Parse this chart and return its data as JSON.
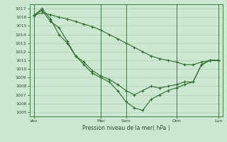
{
  "background_color": "#cde8d2",
  "grid_color": "#a8c8a8",
  "line_color": "#2d6a2d",
  "marker_color": "#2d6a2d",
  "xlabel_text": "Pression niveau de la mer( hPa )",
  "ylim": [
    1004.5,
    1017.5
  ],
  "yticks": [
    1005,
    1006,
    1007,
    1008,
    1009,
    1010,
    1011,
    1012,
    1013,
    1014,
    1015,
    1016,
    1017
  ],
  "xtick_labels": [
    "Ven",
    "Mar",
    "Sam",
    "Dim",
    "Lun"
  ],
  "xtick_positions": [
    0,
    8,
    11,
    17,
    22
  ],
  "vline_positions": [
    0,
    8,
    11,
    17,
    22
  ],
  "series_slow": [
    1016.2,
    1016.5,
    1016.3,
    1016.0,
    1015.8,
    1015.5,
    1015.2,
    1014.9,
    1014.5,
    1014.0,
    1013.5,
    1013.0,
    1012.5,
    1012.0,
    1011.5,
    1011.2,
    1011.0,
    1010.8,
    1010.5,
    1010.5,
    1010.8,
    1011.0,
    1011.0
  ],
  "series_mid": [
    1016.2,
    1016.8,
    1015.5,
    1014.8,
    1013.2,
    1011.5,
    1010.5,
    1009.5,
    1009.0,
    1008.5,
    1007.5,
    1006.2,
    1005.5,
    1005.2,
    1006.5,
    1007.0,
    1007.5,
    1007.8,
    1008.2,
    1008.5,
    1010.5,
    1011.0,
    1011.0
  ],
  "series_fast": [
    1016.2,
    1017.0,
    1015.8,
    1014.0,
    1013.0,
    1011.5,
    1010.8,
    1009.8,
    1009.2,
    1008.8,
    1008.2,
    1007.5,
    1007.0,
    1007.5,
    1008.0,
    1007.8,
    1008.0,
    1008.2,
    1008.5,
    1008.5,
    1010.5,
    1011.0,
    1011.0
  ]
}
